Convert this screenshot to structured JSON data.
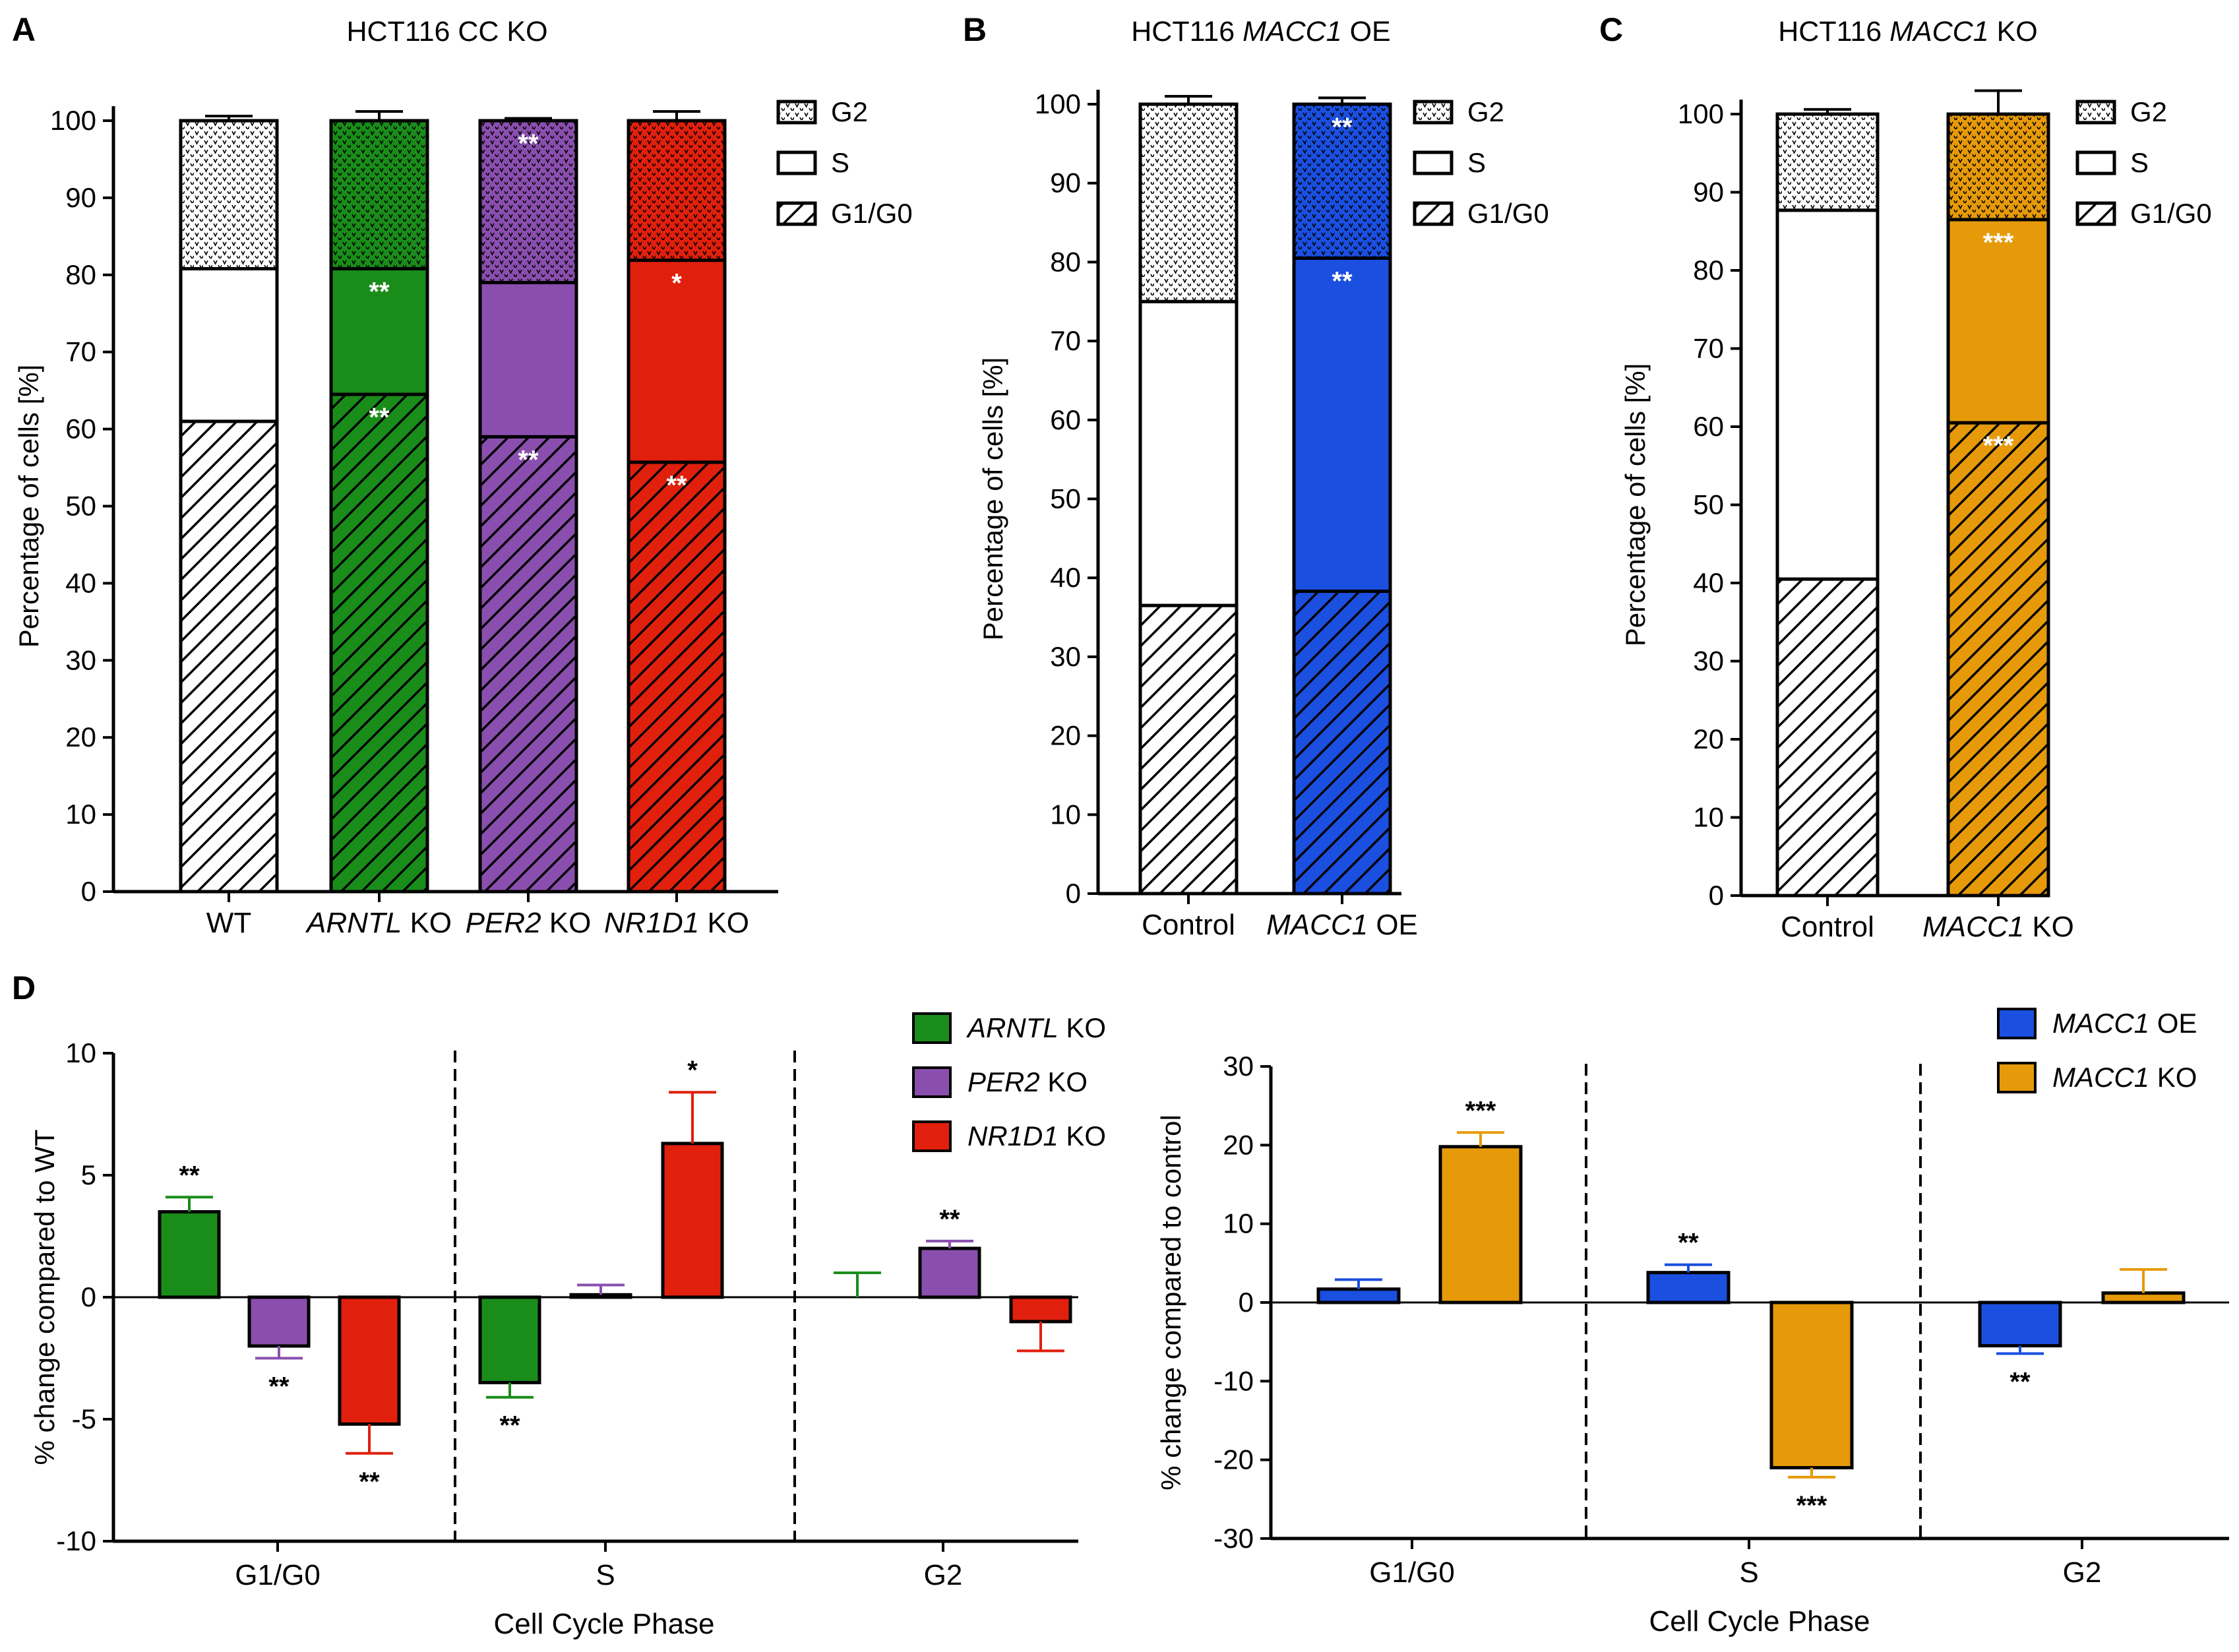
{
  "chart_data": [
    {
      "panel": "A",
      "type": "bar",
      "subtype": "stacked",
      "title": "HCT116 CC KO",
      "ylabel": "Percentage of cells [%]",
      "ylim": [
        0,
        100
      ],
      "yticks": [
        0,
        10,
        20,
        30,
        40,
        50,
        60,
        70,
        80,
        90,
        100
      ],
      "categories": [
        {
          "name": "WT",
          "italic": "",
          "suffix": ""
        },
        {
          "name": "ARNTL KO",
          "italic": "ARNTL",
          "suffix": " KO"
        },
        {
          "name": "PER2 KO",
          "italic": "PER2",
          "suffix": " KO"
        },
        {
          "name": "NR1D1 KO",
          "italic": "NR1D1",
          "suffix": " KO"
        }
      ],
      "colors": [
        "#ffffff",
        "#1a8c1a",
        "#8a4fae",
        "#e0200d"
      ],
      "series": [
        {
          "name": "G1/G0",
          "pattern": "hatch",
          "values": [
            61.0,
            64.5,
            59.0,
            55.7
          ],
          "errors": [
            0.4,
            0.8,
            0.8,
            1.4
          ],
          "stars": [
            "",
            "**",
            "**",
            "**"
          ]
        },
        {
          "name": "S",
          "pattern": "solid",
          "values": [
            19.8,
            16.3,
            20.0,
            26.2
          ],
          "errors": [
            0.5,
            0.8,
            0.5,
            2.0
          ],
          "stars": [
            "",
            "**",
            "",
            "*"
          ]
        },
        {
          "name": "G2",
          "pattern": "dots",
          "values": [
            19.2,
            19.2,
            21.0,
            18.1
          ],
          "errors": [
            0.6,
            1.2,
            0.3,
            1.2
          ],
          "stars": [
            "",
            "",
            "**",
            ""
          ]
        }
      ],
      "legend": [
        "G2",
        "S",
        "G1/G0"
      ]
    },
    {
      "panel": "B",
      "type": "bar",
      "subtype": "stacked",
      "title": "HCT116 MACC1 OE",
      "ylabel": "Percentage of cells [%]",
      "ylim": [
        0,
        100
      ],
      "yticks": [
        0,
        10,
        20,
        30,
        40,
        50,
        60,
        70,
        80,
        90,
        100
      ],
      "categories": [
        {
          "name": "Control",
          "italic": "",
          "suffix": ""
        },
        {
          "name": "MACC1 OE",
          "italic": "MACC1",
          "suffix": " OE"
        }
      ],
      "colors": [
        "#ffffff",
        "#1a4fe0"
      ],
      "series": [
        {
          "name": "G1/G0",
          "pattern": "hatch",
          "values": [
            36.5,
            38.3
          ],
          "errors": [
            1.5,
            0.5
          ],
          "stars": [
            "",
            ""
          ]
        },
        {
          "name": "S",
          "pattern": "solid",
          "values": [
            38.5,
            42.2
          ],
          "errors": [
            0.5,
            0.8
          ],
          "stars": [
            "",
            "**"
          ]
        },
        {
          "name": "G2",
          "pattern": "dots",
          "values": [
            25.0,
            19.5
          ],
          "errors": [
            1.0,
            0.8
          ],
          "stars": [
            "",
            "**"
          ]
        }
      ],
      "legend": [
        "G2",
        "S",
        "G1/G0"
      ]
    },
    {
      "panel": "C",
      "type": "bar",
      "subtype": "stacked",
      "title": "HCT116 MACC1 KO",
      "ylabel": "Percentage of cells [%]",
      "ylim": [
        0,
        100
      ],
      "yticks": [
        0,
        10,
        20,
        30,
        40,
        50,
        60,
        70,
        80,
        90,
        100
      ],
      "categories": [
        {
          "name": "Control",
          "italic": "",
          "suffix": ""
        },
        {
          "name": "MACC1 KO",
          "italic": "MACC1",
          "suffix": " KO"
        }
      ],
      "colors": [
        "#ffffff",
        "#e69a0a"
      ],
      "series": [
        {
          "name": "G1/G0",
          "pattern": "hatch",
          "values": [
            40.5,
            60.5
          ],
          "errors": [
            0.5,
            2.0
          ],
          "stars": [
            "",
            "***"
          ]
        },
        {
          "name": "S",
          "pattern": "solid",
          "values": [
            47.2,
            26.0
          ],
          "errors": [
            0.8,
            1.3
          ],
          "stars": [
            "",
            "***"
          ]
        },
        {
          "name": "G2",
          "pattern": "dots",
          "values": [
            12.3,
            13.5
          ],
          "errors": [
            0.6,
            3.0
          ],
          "stars": [
            "",
            ""
          ]
        }
      ],
      "legend": [
        "G2",
        "S",
        "G1/G0"
      ]
    },
    {
      "panel": "D",
      "type": "bar",
      "subtype": "grouped",
      "ylabel": "% change compared to WT",
      "xlabel": "Cell Cycle Phase",
      "ylim": [
        -10,
        10
      ],
      "yticks": [
        -10,
        -5,
        0,
        5,
        10
      ],
      "categories": [
        "G1/G0",
        "S",
        "G2"
      ],
      "series": [
        {
          "name": "ARNTL KO",
          "italic": "ARNTL",
          "suffix": " KO",
          "color": "#1a8c1a",
          "values": [
            3.5,
            -3.5,
            0.0
          ],
          "errors": [
            0.6,
            0.6,
            1.0
          ],
          "stars": [
            "**",
            "**",
            ""
          ]
        },
        {
          "name": "PER2 KO",
          "italic": "PER2",
          "suffix": " KO",
          "color": "#8a4fae",
          "values": [
            -2.0,
            0.1,
            2.0
          ],
          "errors": [
            0.5,
            0.4,
            0.3
          ],
          "stars": [
            "**",
            "",
            "**"
          ]
        },
        {
          "name": "NR1D1 KO",
          "italic": "NR1D1",
          "suffix": " KO",
          "color": "#e0200d",
          "values": [
            -5.2,
            6.3,
            -1.0
          ],
          "errors": [
            1.2,
            2.1,
            1.2
          ],
          "stars": [
            "**",
            "*",
            ""
          ]
        }
      ]
    },
    {
      "panel": "D",
      "type": "bar",
      "subtype": "grouped",
      "ylabel": "% change compared to control",
      "xlabel": "Cell Cycle Phase",
      "ylim": [
        -30,
        30
      ],
      "yticks": [
        -30,
        -20,
        -10,
        0,
        10,
        20,
        30
      ],
      "categories": [
        "G1/G0",
        "S",
        "G2"
      ],
      "series": [
        {
          "name": "MACC1 OE",
          "italic": "MACC1",
          "suffix": " OE",
          "color": "#1a4fe0",
          "values": [
            1.7,
            3.8,
            -5.5
          ],
          "errors": [
            1.2,
            1.0,
            1.0
          ],
          "stars": [
            "",
            "**",
            "**"
          ]
        },
        {
          "name": "MACC1 KO",
          "italic": "MACC1",
          "suffix": " KO",
          "color": "#e69a0a",
          "values": [
            19.8,
            -21.0,
            1.2
          ],
          "errors": [
            1.8,
            1.2,
            3.0
          ],
          "stars": [
            "***",
            "***",
            ""
          ]
        }
      ]
    }
  ]
}
